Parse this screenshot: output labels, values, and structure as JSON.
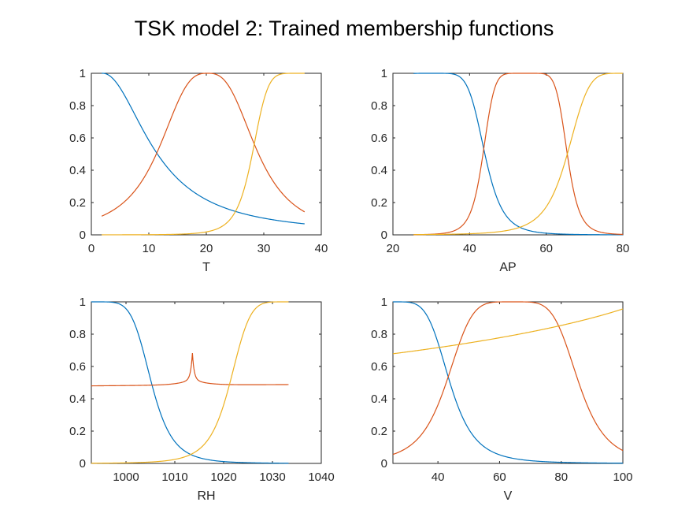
{
  "title": "TSK model 2: Trained membership functions",
  "colors": {
    "mf1": "#0072BD",
    "mf2": "#D95319",
    "mf3": "#EDB120"
  },
  "chart_data": [
    {
      "type": "line",
      "xlabel": "T",
      "xlim": [
        0,
        40
      ],
      "ylim": [
        0,
        1
      ],
      "xticks": [
        "0",
        "10",
        "20",
        "30",
        "40"
      ],
      "yticks": [
        "0",
        "0.2",
        "0.4",
        "0.6",
        "0.8",
        "1"
      ],
      "domain": [
        1.8,
        37.1
      ],
      "series": [
        {
          "mf": "gbell",
          "params": {
            "a": 9.5,
            "b": 1.0,
            "c": 2.0
          }
        },
        {
          "mf": "gbell",
          "params": {
            "a": 8.9,
            "b": 1.4,
            "c": 20.2
          }
        },
        {
          "mf": "gbell",
          "params": {
            "a": 8.5,
            "b": 3.0,
            "c": 36.5
          }
        }
      ]
    },
    {
      "type": "line",
      "xlabel": "AP",
      "xlim": [
        20,
        80
      ],
      "ylim": [
        0,
        1
      ],
      "xticks": [
        "20",
        "40",
        "60",
        "80"
      ],
      "yticks": [
        "0",
        "0.2",
        "0.4",
        "0.6",
        "0.8",
        "1"
      ],
      "domain": [
        25.4,
        80
      ],
      "series": [
        {
          "mf": "gbell",
          "params": {
            "a": 14.0,
            "b": 3.0,
            "c": 30.0
          }
        },
        {
          "mf": "gbell",
          "params": {
            "a": 11.0,
            "b": 3.5,
            "c": 54.5
          }
        },
        {
          "mf": "gbell",
          "params": {
            "a": 15.0,
            "b": 2.5,
            "c": 80.5
          }
        }
      ]
    },
    {
      "type": "line",
      "xlabel": "RH",
      "xlim": [
        992.9,
        1040
      ],
      "ylim": [
        0,
        1
      ],
      "xticks": [
        "1000",
        "1010",
        "1020",
        "1030",
        "1040"
      ],
      "xtick_values": [
        1000,
        1010,
        1020,
        1030,
        1040
      ],
      "yticks": [
        "0",
        "0.2",
        "0.4",
        "0.6",
        "0.8",
        "1"
      ],
      "domain": [
        992.9,
        1033.3
      ],
      "series": [
        {
          "mf": "gbell",
          "params": {
            "a": 12.2,
            "b": 2.8,
            "c": 993.0
          }
        },
        {
          "mf": "peak",
          "params": {
            "base": 0.485,
            "left": 0.48,
            "right": 0.488,
            "c": 1013.6,
            "peak": 0.645
          }
        },
        {
          "mf": "gbell",
          "params": {
            "a": 12.2,
            "b": 2.8,
            "c": 1033.5
          }
        }
      ]
    },
    {
      "type": "line",
      "xlabel": "V",
      "xlim": [
        25.4,
        100
      ],
      "ylim": [
        0,
        1
      ],
      "xticks": [
        "40",
        "60",
        "80",
        "100"
      ],
      "xtick_values": [
        40,
        60,
        80,
        100
      ],
      "yticks": [
        "0",
        "0.2",
        "0.4",
        "0.6",
        "0.8",
        "1"
      ],
      "domain": [
        25.4,
        100
      ],
      "series": [
        {
          "mf": "gbell",
          "params": {
            "a": 18.5,
            "b": 2.3,
            "c": 25.4
          }
        },
        {
          "mf": "gbell",
          "params": {
            "a": 21.5,
            "b": 2.4,
            "c": 64.2
          }
        },
        {
          "mf": "gbell",
          "params": {
            "a": 185.0,
            "b": 0.45,
            "c": 106.0
          }
        }
      ]
    }
  ]
}
